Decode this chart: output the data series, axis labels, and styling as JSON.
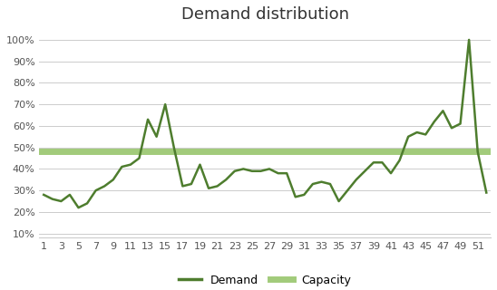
{
  "title": "Demand distribution",
  "demand_x": [
    1,
    2,
    3,
    4,
    5,
    6,
    7,
    8,
    9,
    10,
    11,
    12,
    13,
    14,
    15,
    16,
    17,
    18,
    19,
    20,
    21,
    22,
    23,
    24,
    25,
    26,
    27,
    28,
    29,
    30,
    31,
    32,
    33,
    34,
    35,
    36,
    37,
    38,
    39,
    40,
    41,
    42,
    43,
    44,
    45,
    46,
    47,
    48,
    49,
    50,
    51,
    52
  ],
  "demand_y": [
    0.28,
    0.26,
    0.25,
    0.28,
    0.22,
    0.24,
    0.3,
    0.32,
    0.35,
    0.41,
    0.42,
    0.45,
    0.63,
    0.55,
    0.7,
    0.5,
    0.32,
    0.33,
    0.42,
    0.31,
    0.32,
    0.35,
    0.39,
    0.4,
    0.39,
    0.39,
    0.4,
    0.38,
    0.38,
    0.27,
    0.28,
    0.33,
    0.34,
    0.33,
    0.25,
    0.3,
    0.35,
    0.39,
    0.43,
    0.43,
    0.38,
    0.44,
    0.55,
    0.57,
    0.56,
    0.62,
    0.67,
    0.59,
    0.61,
    1.0,
    0.48,
    0.29
  ],
  "capacity": 0.48,
  "demand_color": "#4e7d2e",
  "capacity_color": "#92c264",
  "xtick_labels": [
    "1",
    "3",
    "5",
    "7",
    "9",
    "11",
    "13",
    "15",
    "17",
    "19",
    "21",
    "23",
    "25",
    "27",
    "29",
    "31",
    "33",
    "35",
    "37",
    "39",
    "41",
    "43",
    "45",
    "47",
    "49",
    "51"
  ],
  "xtick_positions": [
    1,
    3,
    5,
    7,
    9,
    11,
    13,
    15,
    17,
    19,
    21,
    23,
    25,
    27,
    29,
    31,
    33,
    35,
    37,
    39,
    41,
    43,
    45,
    47,
    49,
    51
  ],
  "ytick_labels": [
    "10%",
    "20%",
    "30%",
    "40%",
    "50%",
    "60%",
    "70%",
    "80%",
    "90%",
    "100%"
  ],
  "ytick_values": [
    0.1,
    0.2,
    0.3,
    0.4,
    0.5,
    0.6,
    0.7,
    0.8,
    0.9,
    1.0
  ],
  "legend_demand": "Demand",
  "legend_capacity": "Capacity",
  "ylim": [
    0.08,
    1.05
  ],
  "xlim": [
    0.5,
    52.5
  ],
  "background_color": "#ffffff",
  "grid_color": "#cccccc",
  "title_fontsize": 13,
  "axis_fontsize": 8,
  "legend_fontsize": 9,
  "capacity_linewidth": 5,
  "demand_linewidth": 1.8
}
